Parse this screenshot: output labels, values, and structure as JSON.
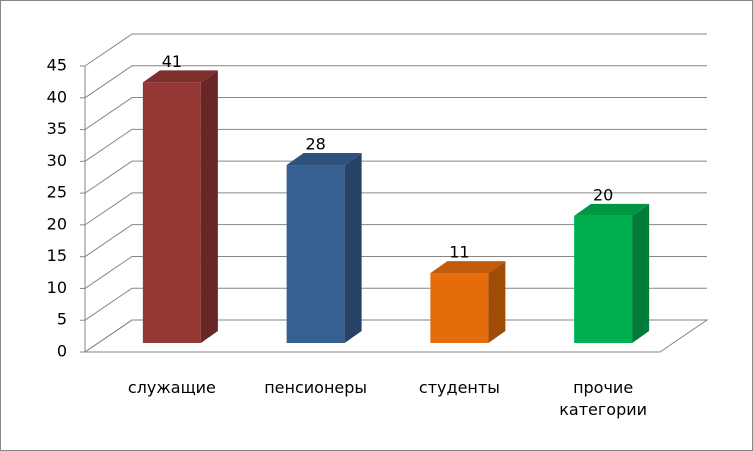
{
  "chart_data": {
    "type": "bar3d",
    "categories": [
      "служащие",
      "пенсионеры",
      "студенты",
      "прочие категории"
    ],
    "values": [
      41,
      28,
      11,
      20
    ],
    "colors": [
      "#953735",
      "#376092",
      "#e46c0a",
      "#00b050"
    ],
    "ylim": [
      0,
      45
    ],
    "yticks": [
      0,
      5,
      10,
      15,
      20,
      25,
      30,
      35,
      40,
      45
    ],
    "grid": true
  }
}
